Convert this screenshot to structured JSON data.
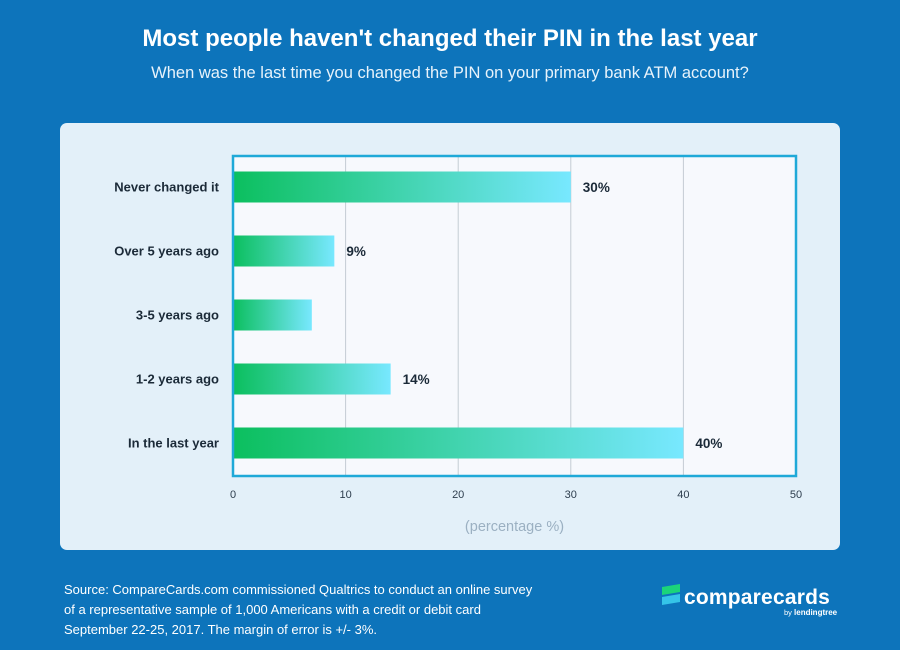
{
  "header": {
    "title": "Most people haven't changed their PIN in the last year",
    "subtitle": "When was the last time you changed the PIN on your primary bank ATM account?"
  },
  "chart_data": {
    "type": "bar",
    "orientation": "horizontal",
    "categories": [
      "Never changed it",
      "Over 5 years ago",
      "3-5 years ago",
      "1-2 years ago",
      "In the last year"
    ],
    "values": [
      30,
      9,
      7,
      14,
      40
    ],
    "data_labels": [
      "30%",
      "9%",
      "",
      "14%",
      "40%"
    ],
    "xlabel": "(percentage %)",
    "ylabel": "",
    "xlim": [
      0,
      50
    ],
    "xticks": [
      0,
      10,
      20,
      30,
      40,
      50
    ],
    "grid": true,
    "colors": {
      "bar_start": "#0bbf5e",
      "bar_end": "#78e8ff",
      "frame": "#1fa9d8",
      "grid": "#c4ccd4",
      "plot_bg": "#f7f9fd"
    }
  },
  "footer": {
    "source_lines": [
      "Source: CompareCards.com commissioned Qualtrics to conduct an online survey",
      "of a representative sample of 1,000 Americans with a credit or debit card",
      "September 22-25, 2017. The margin of error is +/- 3%."
    ]
  },
  "logo": {
    "wordmark": "comparecards",
    "byline_prefix": "by",
    "byline_brand": "lendingtree"
  }
}
